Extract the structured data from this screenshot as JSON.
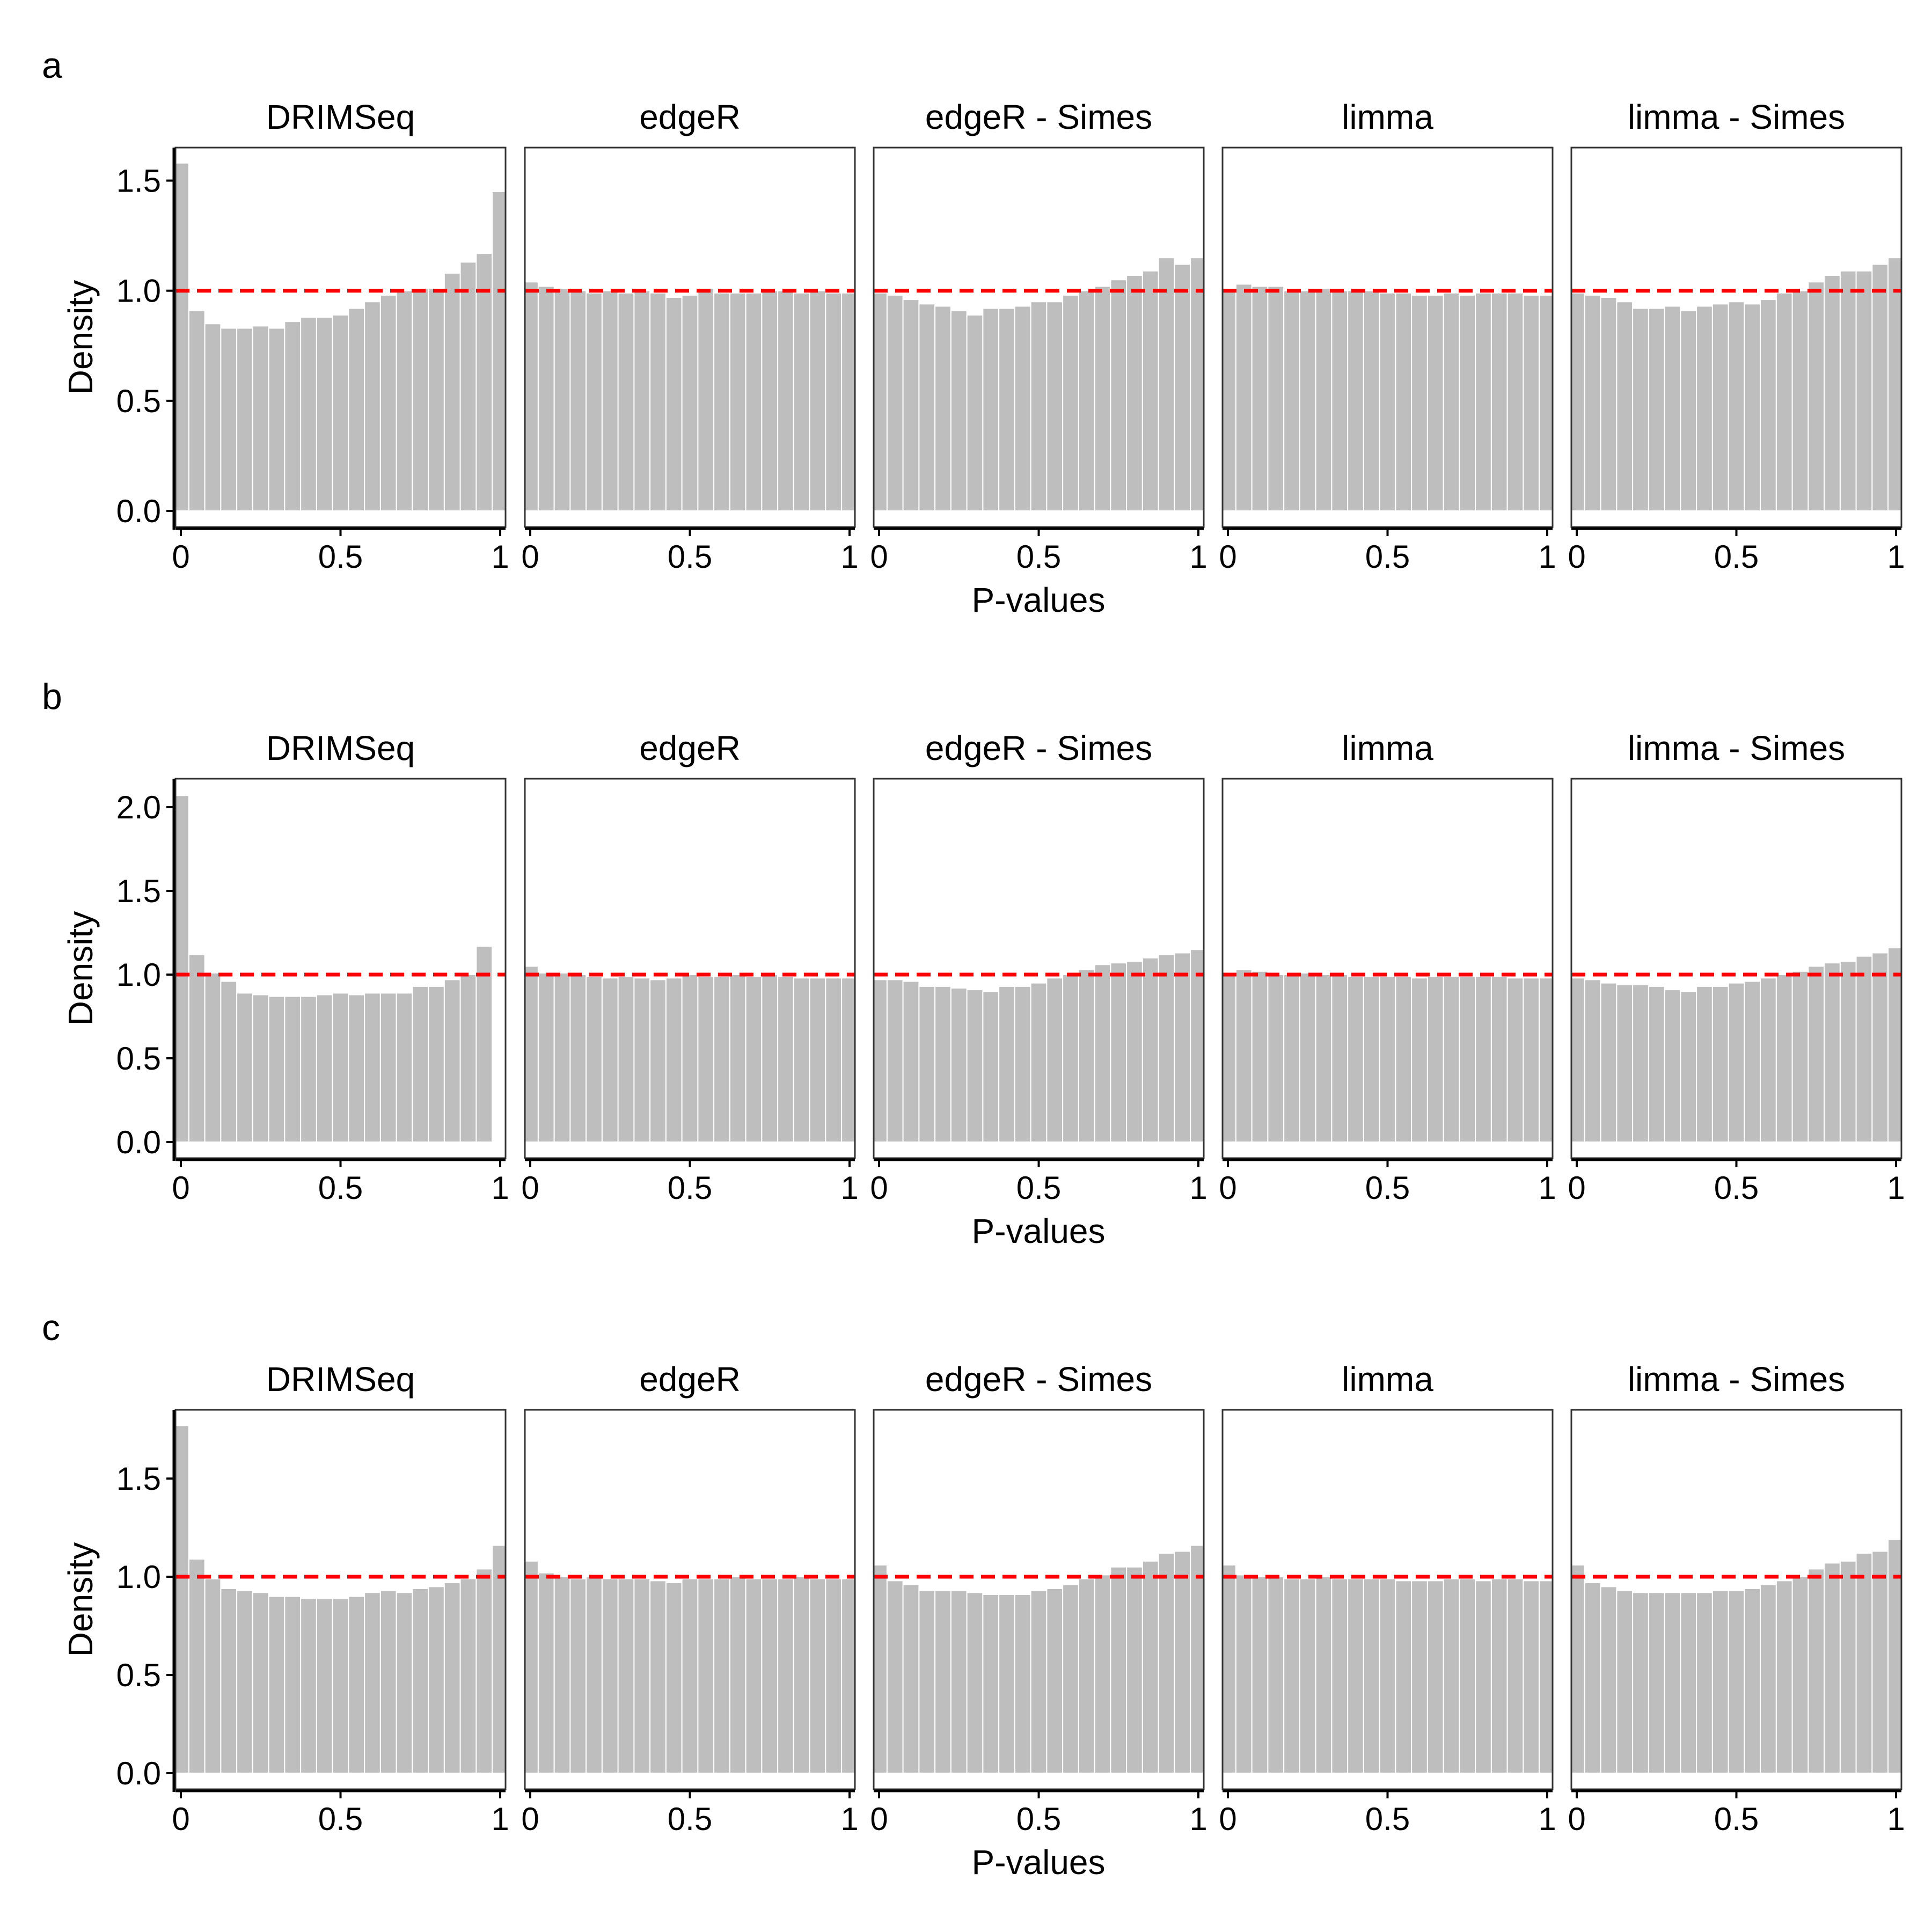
{
  "colors": {
    "bar": "#bebebe",
    "bar_outline": "#ffffff",
    "reference_line": "#ff0000",
    "axis": "#000000",
    "panel_border": "#333333"
  },
  "chart_data": [
    {
      "type": "histogram",
      "panel": "a",
      "xlabel": "P-values",
      "ylabel": "Density",
      "x_ticks": [
        "0",
        "0.5",
        "1"
      ],
      "x_range": [
        0,
        1
      ],
      "y_ticks": [
        "0.0",
        "0.5",
        "1.0",
        "1.5"
      ],
      "ylim": [
        0,
        1.65
      ],
      "reference_line": 1.0,
      "facets": [
        {
          "name": "DRIMSeq",
          "values": [
            1.58,
            0.91,
            0.85,
            0.83,
            0.83,
            0.84,
            0.83,
            0.86,
            0.88,
            0.88,
            0.89,
            0.92,
            0.95,
            0.98,
            1.0,
            1.01,
            1.01,
            1.08,
            1.13,
            1.17,
            1.45
          ]
        },
        {
          "name": "edgeR",
          "values": [
            1.04,
            1.02,
            1.01,
            1.0,
            0.99,
            1.0,
            0.99,
            1.0,
            0.99,
            0.97,
            0.98,
            1.01,
            0.99,
            0.99,
            0.99,
            1.0,
            1.0,
            0.99,
            1.0,
            0.99,
            0.99
          ]
        },
        {
          "name": "edgeR - Simes",
          "values": [
            0.99,
            0.98,
            0.96,
            0.94,
            0.93,
            0.91,
            0.89,
            0.92,
            0.92,
            0.93,
            0.95,
            0.95,
            0.98,
            1.0,
            1.02,
            1.05,
            1.07,
            1.09,
            1.15,
            1.12,
            1.15
          ]
        },
        {
          "name": "limma",
          "values": [
            1.01,
            1.03,
            1.02,
            1.02,
            1.0,
            1.0,
            1.01,
            1.0,
            1.0,
            1.0,
            0.99,
            0.99,
            0.98,
            0.98,
            0.99,
            0.98,
            0.99,
            0.99,
            0.99,
            0.98,
            0.98
          ]
        },
        {
          "name": "limma - Simes",
          "values": [
            0.99,
            0.98,
            0.97,
            0.95,
            0.92,
            0.92,
            0.93,
            0.91,
            0.93,
            0.94,
            0.95,
            0.94,
            0.96,
            0.99,
            1.0,
            1.04,
            1.07,
            1.09,
            1.09,
            1.12,
            1.15
          ]
        }
      ]
    },
    {
      "type": "histogram",
      "panel": "b",
      "xlabel": "P-values",
      "ylabel": "Density",
      "x_ticks": [
        "0",
        "0.5",
        "1"
      ],
      "x_range": [
        0,
        1
      ],
      "y_ticks": [
        "0.0",
        "0.5",
        "1.0",
        "1.5",
        "2.0"
      ],
      "ylim": [
        0,
        2.17
      ],
      "reference_line": 1.0,
      "facets": [
        {
          "name": "DRIMSeq",
          "values": [
            2.07,
            1.12,
            1.01,
            0.96,
            0.89,
            0.88,
            0.87,
            0.87,
            0.87,
            0.88,
            0.89,
            0.88,
            0.89,
            0.89,
            0.89,
            0.93,
            0.93,
            0.97,
            1.0,
            1.17,
            0.0
          ]
        },
        {
          "name": "edgeR",
          "values": [
            1.05,
            1.01,
            1.01,
            1.0,
            0.99,
            0.98,
            0.99,
            0.98,
            0.97,
            0.98,
            1.0,
            0.99,
            0.99,
            1.0,
            0.99,
            1.0,
            0.99,
            0.98,
            0.98,
            0.98,
            0.98
          ]
        },
        {
          "name": "edgeR - Simes",
          "values": [
            0.97,
            0.97,
            0.96,
            0.93,
            0.93,
            0.92,
            0.91,
            0.9,
            0.93,
            0.93,
            0.95,
            0.98,
            1.0,
            1.03,
            1.06,
            1.07,
            1.08,
            1.1,
            1.12,
            1.13,
            1.15
          ]
        },
        {
          "name": "limma",
          "values": [
            1.01,
            1.03,
            1.02,
            1.0,
            1.0,
            1.01,
            1.0,
            1.0,
            0.99,
            0.99,
            0.99,
            0.99,
            0.98,
            0.99,
            0.99,
            0.99,
            0.99,
            0.99,
            0.98,
            0.98,
            0.98
          ]
        },
        {
          "name": "limma - Simes",
          "values": [
            0.98,
            0.97,
            0.95,
            0.94,
            0.94,
            0.93,
            0.91,
            0.9,
            0.93,
            0.93,
            0.95,
            0.96,
            0.98,
            1.0,
            1.02,
            1.05,
            1.07,
            1.08,
            1.11,
            1.13,
            1.16
          ]
        }
      ]
    },
    {
      "type": "histogram",
      "panel": "c",
      "xlabel": "P-values",
      "ylabel": "Density",
      "x_ticks": [
        "0",
        "0.5",
        "1"
      ],
      "x_range": [
        0,
        1
      ],
      "y_ticks": [
        "0.0",
        "0.5",
        "1.0",
        "1.5"
      ],
      "ylim": [
        0,
        1.85
      ],
      "reference_line": 1.0,
      "facets": [
        {
          "name": "DRIMSeq",
          "values": [
            1.77,
            1.09,
            0.99,
            0.94,
            0.93,
            0.92,
            0.9,
            0.9,
            0.89,
            0.89,
            0.89,
            0.9,
            0.92,
            0.93,
            0.92,
            0.94,
            0.95,
            0.97,
            0.99,
            1.04,
            1.16
          ]
        },
        {
          "name": "edgeR",
          "values": [
            1.08,
            1.02,
            1.0,
            0.99,
            1.0,
            0.99,
            0.99,
            0.99,
            0.98,
            0.97,
            0.99,
            0.99,
            0.99,
            1.0,
            0.99,
            0.99,
            0.99,
            1.0,
            0.99,
            0.99,
            0.99
          ]
        },
        {
          "name": "edgeR - Simes",
          "values": [
            1.06,
            0.98,
            0.96,
            0.93,
            0.93,
            0.93,
            0.92,
            0.91,
            0.91,
            0.91,
            0.93,
            0.94,
            0.96,
            0.99,
            1.01,
            1.05,
            1.05,
            1.08,
            1.12,
            1.13,
            1.16
          ]
        },
        {
          "name": "limma",
          "values": [
            1.06,
            1.01,
            1.0,
            1.0,
            0.99,
            0.99,
            1.0,
            0.99,
            0.99,
            0.99,
            0.99,
            0.98,
            0.98,
            0.98,
            0.99,
            0.99,
            0.98,
            0.99,
            0.99,
            0.98,
            0.98
          ]
        },
        {
          "name": "limma - Simes",
          "values": [
            1.06,
            0.97,
            0.95,
            0.93,
            0.92,
            0.92,
            0.92,
            0.92,
            0.92,
            0.93,
            0.93,
            0.94,
            0.96,
            0.98,
            1.0,
            1.04,
            1.07,
            1.08,
            1.12,
            1.13,
            1.19
          ]
        }
      ]
    }
  ]
}
